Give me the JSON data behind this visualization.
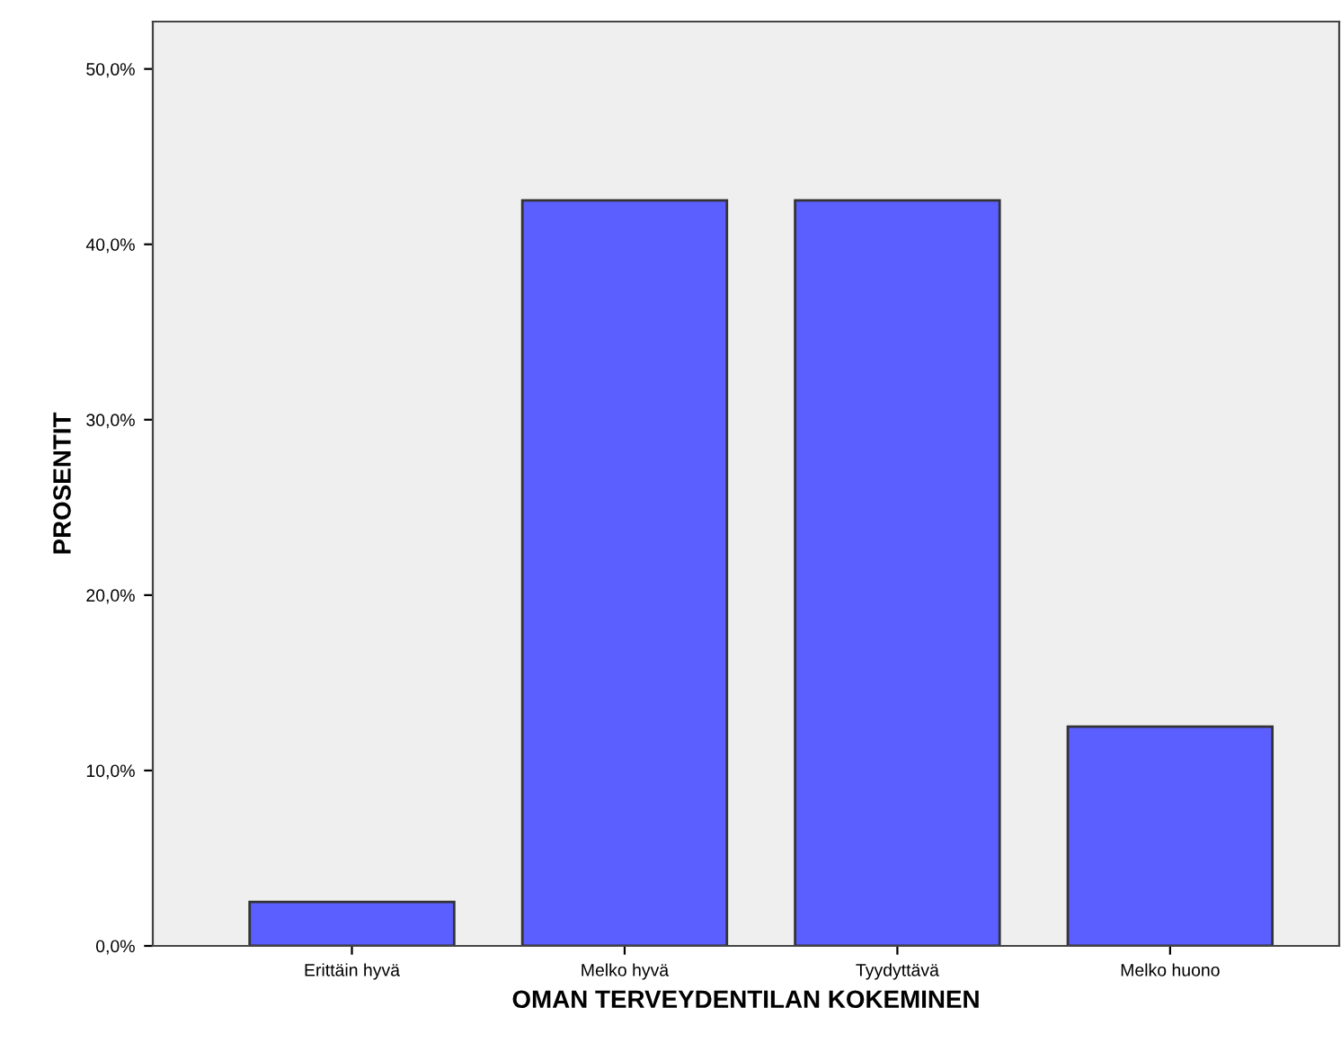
{
  "chart_data": {
    "type": "bar",
    "xlabel": "OMAN TERVEYDENTILAN KOKEMINEN",
    "ylabel": "PROSENTIT",
    "categories": [
      "Erittäin hyvä",
      "Melko hyvä",
      "Tyydyttävä",
      "Melko huono"
    ],
    "values": [
      2.5,
      42.5,
      42.5,
      12.5
    ],
    "color": "#5c5fff",
    "ylim": [
      0,
      52.7
    ],
    "yticks": [
      {
        "value": 0,
        "label": "0,0%"
      },
      {
        "value": 10,
        "label": "10,0%"
      },
      {
        "value": 20,
        "label": "20,0%"
      },
      {
        "value": 30,
        "label": "30,0%"
      },
      {
        "value": 40,
        "label": "40,0%"
      },
      {
        "value": 50,
        "label": "50,0%"
      }
    ],
    "grid": false
  }
}
